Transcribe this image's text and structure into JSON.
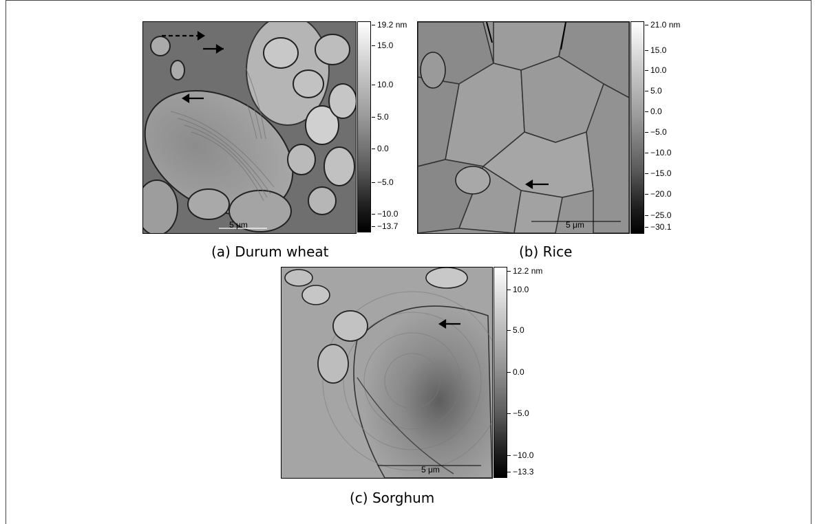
{
  "panels": [
    {
      "caption": "(a) Durum wheat",
      "scalebar_label": "5 μm",
      "colorbar_ticks": [
        "19.2 nm",
        "15.0",
        "10.0",
        "5.0",
        "0.0",
        "−5.0",
        "−10.0",
        "−13.7"
      ]
    },
    {
      "caption": "(b) Rice",
      "scalebar_label": "5 μm",
      "colorbar_ticks": [
        "21.0 nm",
        "15.0",
        "10.0",
        "5.0",
        "0.0",
        "−5.0",
        "−10.0",
        "−15.0",
        "−20.0",
        "−25.0",
        "−30.1"
      ]
    },
    {
      "caption": "(c) Sorghum",
      "scalebar_label": "5 μm",
      "colorbar_ticks": [
        "12.2 nm",
        "10.0",
        "5.0",
        "0.0",
        "−5.0",
        "−10.0",
        "−13.3"
      ]
    }
  ]
}
